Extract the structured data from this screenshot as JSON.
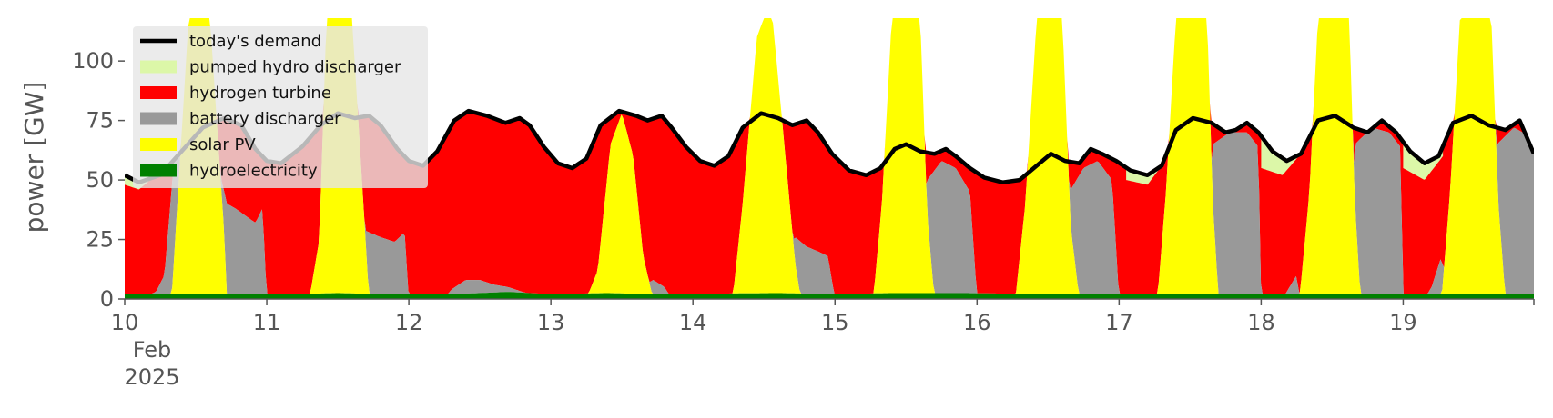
{
  "chart_data": {
    "type": "area",
    "title": "",
    "xlabel": "",
    "ylabel": "power [GW]",
    "xlim": [
      0,
      9.92
    ],
    "ylim": [
      0,
      118
    ],
    "grid": false,
    "legend_placement": "top-left",
    "x_ticks": [
      {
        "x": 0,
        "label": "10"
      },
      {
        "x": 1,
        "label": "11"
      },
      {
        "x": 2,
        "label": "12"
      },
      {
        "x": 3,
        "label": "13"
      },
      {
        "x": 4,
        "label": "14"
      },
      {
        "x": 5,
        "label": "15"
      },
      {
        "x": 6,
        "label": "16"
      },
      {
        "x": 7,
        "label": "17"
      },
      {
        "x": 8,
        "label": "18"
      },
      {
        "x": 9,
        "label": "19"
      }
    ],
    "x_subticks": [
      "Feb",
      "2025"
    ],
    "y_ticks": [
      0,
      25,
      50,
      75,
      100
    ],
    "x_units": "days since 10 Feb 2025",
    "legend": [
      {
        "name": "today's demand",
        "kind": "line",
        "color": "#000000"
      },
      {
        "name": "pumped hydro discharger",
        "kind": "patch",
        "color": "#dcf7a8"
      },
      {
        "name": "hydrogen turbine",
        "kind": "patch",
        "color": "#ff0000"
      },
      {
        "name": "battery discharger",
        "kind": "patch",
        "color": "#999999"
      },
      {
        "name": "solar PV",
        "kind": "patch",
        "color": "#ffff00"
      },
      {
        "name": "hydroelectricity",
        "kind": "patch",
        "color": "#008000"
      }
    ],
    "stack_order": [
      "hydroelectricity",
      "solar PV",
      "battery discharger",
      "hydrogen turbine",
      "pumped hydro discharger"
    ],
    "series": [
      {
        "name": "today's demand",
        "color": "#000000",
        "points": [
          [
            0,
            52
          ],
          [
            0.1,
            49
          ],
          [
            0.25,
            52
          ],
          [
            0.4,
            62
          ],
          [
            0.55,
            72
          ],
          [
            0.7,
            76
          ],
          [
            0.82,
            73
          ],
          [
            0.92,
            63
          ],
          [
            1.0,
            58
          ],
          [
            1.1,
            57
          ],
          [
            1.25,
            64
          ],
          [
            1.38,
            73
          ],
          [
            1.5,
            78
          ],
          [
            1.62,
            76
          ],
          [
            1.72,
            77
          ],
          [
            1.8,
            73
          ],
          [
            1.92,
            63
          ],
          [
            2.0,
            58
          ],
          [
            2.1,
            56
          ],
          [
            2.2,
            62
          ],
          [
            2.32,
            75
          ],
          [
            2.42,
            79
          ],
          [
            2.55,
            77
          ],
          [
            2.68,
            74
          ],
          [
            2.78,
            76
          ],
          [
            2.85,
            73
          ],
          [
            2.95,
            64
          ],
          [
            3.05,
            57
          ],
          [
            3.15,
            55
          ],
          [
            3.25,
            59
          ],
          [
            3.35,
            73
          ],
          [
            3.48,
            79
          ],
          [
            3.6,
            77
          ],
          [
            3.68,
            75
          ],
          [
            3.78,
            77
          ],
          [
            3.85,
            72
          ],
          [
            3.95,
            64
          ],
          [
            4.05,
            58
          ],
          [
            4.15,
            56
          ],
          [
            4.25,
            60
          ],
          [
            4.35,
            72
          ],
          [
            4.48,
            78
          ],
          [
            4.6,
            76
          ],
          [
            4.7,
            73
          ],
          [
            4.8,
            75
          ],
          [
            4.88,
            70
          ],
          [
            4.98,
            61
          ],
          [
            5.1,
            54
          ],
          [
            5.22,
            52
          ],
          [
            5.32,
            55
          ],
          [
            5.42,
            63
          ],
          [
            5.5,
            65
          ],
          [
            5.6,
            62
          ],
          [
            5.7,
            61
          ],
          [
            5.78,
            63
          ],
          [
            5.85,
            60
          ],
          [
            5.95,
            55
          ],
          [
            6.05,
            51
          ],
          [
            6.18,
            49
          ],
          [
            6.3,
            50
          ],
          [
            6.42,
            56
          ],
          [
            6.52,
            61
          ],
          [
            6.62,
            58
          ],
          [
            6.72,
            57
          ],
          [
            6.8,
            63
          ],
          [
            6.88,
            61
          ],
          [
            6.98,
            58
          ],
          [
            7.08,
            54
          ],
          [
            7.2,
            52
          ],
          [
            7.3,
            56
          ],
          [
            7.4,
            71
          ],
          [
            7.52,
            76
          ],
          [
            7.65,
            74
          ],
          [
            7.75,
            70
          ],
          [
            7.82,
            71
          ],
          [
            7.9,
            74
          ],
          [
            7.98,
            70
          ],
          [
            8.08,
            62
          ],
          [
            8.18,
            58
          ],
          [
            8.28,
            61
          ],
          [
            8.4,
            75
          ],
          [
            8.52,
            77
          ],
          [
            8.65,
            72
          ],
          [
            8.75,
            70
          ],
          [
            8.85,
            75
          ],
          [
            8.95,
            70
          ],
          [
            9.05,
            62
          ],
          [
            9.15,
            57
          ],
          [
            9.25,
            60
          ],
          [
            9.35,
            74
          ],
          [
            9.48,
            77
          ],
          [
            9.6,
            73
          ],
          [
            9.72,
            71
          ],
          [
            9.82,
            75
          ],
          [
            9.92,
            61
          ]
        ]
      },
      {
        "name": "hydroelectricity",
        "color": "#008000",
        "points": [
          [
            0,
            2
          ],
          [
            1.2,
            2
          ],
          [
            1.5,
            2.5
          ],
          [
            1.8,
            2
          ],
          [
            2.3,
            2
          ],
          [
            2.7,
            3
          ],
          [
            3.0,
            2
          ],
          [
            3.4,
            2.5
          ],
          [
            3.7,
            2
          ],
          [
            4.6,
            2.5
          ],
          [
            5.0,
            2
          ],
          [
            5.4,
            2.5
          ],
          [
            5.9,
            2.5
          ],
          [
            6.5,
            2
          ],
          [
            7.4,
            2
          ],
          [
            8.0,
            2
          ],
          [
            9.0,
            2
          ],
          [
            9.92,
            2
          ]
        ]
      },
      {
        "name": "solar PV",
        "color": "#ffff00",
        "points": [
          [
            0,
            0
          ],
          [
            0.33,
            0
          ],
          [
            0.45,
            118
          ],
          [
            0.6,
            118
          ],
          [
            0.7,
            28
          ],
          [
            0.72,
            0
          ],
          [
            1.3,
            0
          ],
          [
            1.37,
            25
          ],
          [
            1.42,
            118
          ],
          [
            1.6,
            118
          ],
          [
            1.68,
            40
          ],
          [
            1.72,
            0
          ],
          [
            3.25,
            0
          ],
          [
            3.33,
            12
          ],
          [
            3.42,
            65
          ],
          [
            3.5,
            78
          ],
          [
            3.58,
            60
          ],
          [
            3.65,
            18
          ],
          [
            3.72,
            0
          ],
          [
            4.28,
            0
          ],
          [
            4.35,
            40
          ],
          [
            4.45,
            110
          ],
          [
            4.5,
            118
          ],
          [
            4.56,
            118
          ],
          [
            4.62,
            80
          ],
          [
            4.72,
            15
          ],
          [
            4.76,
            0
          ],
          [
            5.27,
            0
          ],
          [
            5.33,
            40
          ],
          [
            5.4,
            118
          ],
          [
            5.6,
            118
          ],
          [
            5.65,
            35
          ],
          [
            5.7,
            0
          ],
          [
            6.27,
            0
          ],
          [
            6.34,
            40
          ],
          [
            6.42,
            118
          ],
          [
            6.6,
            118
          ],
          [
            6.66,
            30
          ],
          [
            6.72,
            0
          ],
          [
            7.27,
            0
          ],
          [
            7.33,
            45
          ],
          [
            7.4,
            118
          ],
          [
            7.62,
            118
          ],
          [
            7.66,
            40
          ],
          [
            7.7,
            0
          ],
          [
            8.27,
            0
          ],
          [
            8.34,
            45
          ],
          [
            8.4,
            118
          ],
          [
            8.62,
            118
          ],
          [
            8.66,
            40
          ],
          [
            8.7,
            0
          ],
          [
            9.27,
            0
          ],
          [
            9.33,
            45
          ],
          [
            9.4,
            118
          ],
          [
            9.62,
            118
          ],
          [
            9.67,
            40
          ],
          [
            9.72,
            0
          ],
          [
            9.92,
            0
          ]
        ]
      },
      {
        "name": "battery discharger",
        "color": "#999999",
        "points": [
          [
            0,
            2
          ],
          [
            0.08,
            2
          ],
          [
            0.18,
            2
          ],
          [
            0.22,
            3
          ],
          [
            0.28,
            10
          ],
          [
            0.35,
            60
          ],
          [
            0.4,
            70
          ],
          [
            0.45,
            70
          ],
          [
            0.55,
            66
          ],
          [
            0.65,
            58
          ],
          [
            0.72,
            40
          ],
          [
            0.78,
            38
          ],
          [
            0.85,
            35
          ],
          [
            0.92,
            32
          ],
          [
            0.97,
            38
          ],
          [
            1.0,
            0
          ],
          [
            1.2,
            0
          ],
          [
            1.3,
            0
          ],
          [
            1.5,
            0
          ],
          [
            1.65,
            30
          ],
          [
            1.72,
            28
          ],
          [
            1.8,
            26
          ],
          [
            1.9,
            24
          ],
          [
            1.97,
            28
          ],
          [
            2.0,
            0
          ],
          [
            2.25,
            0
          ],
          [
            2.3,
            4
          ],
          [
            2.4,
            8
          ],
          [
            2.5,
            8
          ],
          [
            2.6,
            6
          ],
          [
            2.7,
            5
          ],
          [
            2.8,
            3
          ],
          [
            3.0,
            0
          ],
          [
            3.5,
            0
          ],
          [
            3.72,
            8
          ],
          [
            3.8,
            5
          ],
          [
            3.85,
            0
          ],
          [
            4.45,
            0
          ],
          [
            4.72,
            26
          ],
          [
            4.8,
            22
          ],
          [
            4.88,
            20
          ],
          [
            4.95,
            18
          ],
          [
            5.0,
            0
          ],
          [
            5.55,
            0
          ],
          [
            5.6,
            0
          ],
          [
            5.65,
            50
          ],
          [
            5.75,
            58
          ],
          [
            5.85,
            55
          ],
          [
            5.95,
            45
          ],
          [
            6.0,
            0
          ],
          [
            6.25,
            0
          ],
          [
            6.3,
            4
          ],
          [
            6.35,
            0
          ],
          [
            6.55,
            0
          ],
          [
            6.65,
            45
          ],
          [
            6.75,
            55
          ],
          [
            6.85,
            58
          ],
          [
            6.95,
            50
          ],
          [
            7.0,
            0
          ],
          [
            7.62,
            0
          ],
          [
            7.66,
            65
          ],
          [
            7.78,
            70
          ],
          [
            7.9,
            70
          ],
          [
            7.98,
            64
          ],
          [
            8.0,
            0
          ],
          [
            8.15,
            0
          ],
          [
            8.2,
            5
          ],
          [
            8.25,
            10
          ],
          [
            8.27,
            0
          ],
          [
            8.62,
            0
          ],
          [
            8.66,
            65
          ],
          [
            8.78,
            72
          ],
          [
            8.9,
            70
          ],
          [
            8.98,
            64
          ],
          [
            9.0,
            0
          ],
          [
            9.15,
            0
          ],
          [
            9.2,
            5
          ],
          [
            9.27,
            18
          ],
          [
            9.3,
            0
          ],
          [
            9.62,
            0
          ],
          [
            9.66,
            65
          ],
          [
            9.78,
            72
          ],
          [
            9.9,
            68
          ],
          [
            9.92,
            66
          ]
        ]
      }
    ],
    "hydrogen_fill": "region between the battery layer and the demand line except where pumped hydro covers it",
    "pumped_hydro_regions": [
      [
        [
          0.0,
          48
        ],
        [
          0.1,
          46
        ],
        [
          0.22,
          52
        ]
      ],
      [
        [
          8.0,
          55
        ],
        [
          8.15,
          52
        ],
        [
          8.28,
          61
        ]
      ],
      [
        [
          9.0,
          55
        ],
        [
          9.15,
          50
        ],
        [
          9.28,
          60
        ]
      ],
      [
        [
          7.05,
          50
        ],
        [
          7.2,
          48
        ],
        [
          7.3,
          56
        ]
      ]
    ]
  }
}
